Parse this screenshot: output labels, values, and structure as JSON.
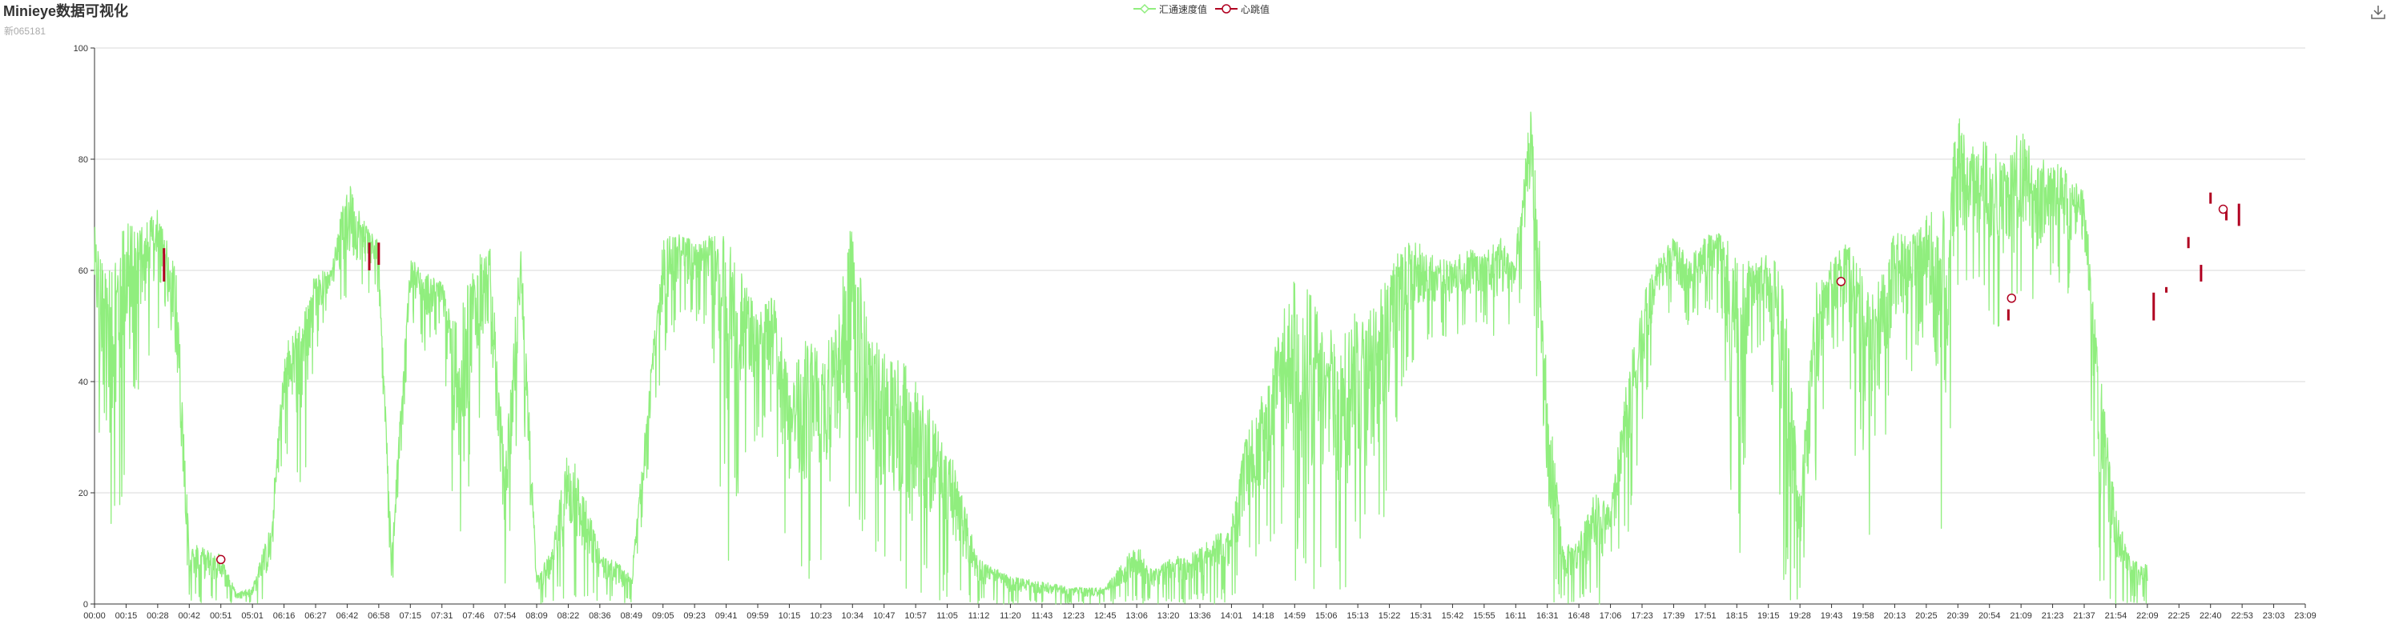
{
  "header": {
    "title": "Minieye数据可视化",
    "subtitle": "新065181"
  },
  "toolbox": {
    "save_icon": "download-icon"
  },
  "chart_data": {
    "type": "line",
    "title": "Minieye数据可视化",
    "subtitle": "新065181",
    "legend": {
      "placement": "top-center",
      "items": [
        {
          "name": "汇通速度值",
          "color": "#90ee7e",
          "marker": "line-diamond"
        },
        {
          "name": "心跳值",
          "color": "#b00020",
          "marker": "line-circle"
        }
      ]
    },
    "xlabel": "",
    "ylabel": "",
    "ylim": [
      0,
      100
    ],
    "y_ticks": [
      0,
      20,
      40,
      60,
      80,
      100
    ],
    "grid": true,
    "x_ticks": [
      "00:00",
      "00:15",
      "00:28",
      "00:42",
      "00:51",
      "05:01",
      "06:16",
      "06:27",
      "06:42",
      "06:58",
      "07:15",
      "07:31",
      "07:46",
      "07:54",
      "08:09",
      "08:22",
      "08:36",
      "08:49",
      "09:05",
      "09:23",
      "09:41",
      "09:59",
      "10:15",
      "10:23",
      "10:34",
      "10:47",
      "10:57",
      "11:05",
      "11:12",
      "11:20",
      "11:43",
      "12:23",
      "12:45",
      "13:06",
      "13:20",
      "13:36",
      "14:01",
      "14:18",
      "14:59",
      "15:06",
      "15:13",
      "15:22",
      "15:31",
      "15:42",
      "15:55",
      "16:11",
      "16:31",
      "16:48",
      "17:06",
      "17:23",
      "17:39",
      "17:51",
      "18:15",
      "19:15",
      "19:28",
      "19:43",
      "19:58",
      "20:13",
      "20:25",
      "20:39",
      "20:54",
      "21:09",
      "21:23",
      "21:37",
      "21:54",
      "22:09",
      "22:25",
      "22:40",
      "22:53",
      "23:03",
      "23:09"
    ],
    "series": [
      {
        "name": "汇通速度值",
        "color": "#90ee7e",
        "style": "high-frequency noisy line; segment envelope [category index, low, high]",
        "segments": [
          [
            0,
            45,
            68
          ],
          [
            0.4,
            0,
            62
          ],
          [
            1,
            25,
            70
          ],
          [
            1.5,
            40,
            68
          ],
          [
            2,
            50,
            71
          ],
          [
            2.6,
            27,
            60
          ],
          [
            3,
            0,
            11
          ],
          [
            3.5,
            0,
            10
          ],
          [
            4,
            0,
            9
          ],
          [
            4.5,
            0,
            2
          ],
          [
            5,
            0,
            3
          ],
          [
            5.6,
            0,
            15
          ],
          [
            6,
            28,
            46
          ],
          [
            6.6,
            15,
            52
          ],
          [
            7,
            45,
            60
          ],
          [
            7.5,
            55,
            60
          ],
          [
            8,
            50,
            77
          ],
          [
            8.5,
            55,
            70
          ],
          [
            9,
            56,
            65
          ],
          [
            9.4,
            0,
            10
          ],
          [
            10,
            52,
            62
          ],
          [
            10.5,
            45,
            60
          ],
          [
            11,
            50,
            58
          ],
          [
            11.5,
            0,
            50
          ],
          [
            12,
            30,
            62
          ],
          [
            12.5,
            38,
            66
          ],
          [
            13,
            0,
            25
          ],
          [
            13.5,
            40,
            67
          ],
          [
            14,
            0,
            5
          ],
          [
            14.5,
            0,
            10
          ],
          [
            15,
            0,
            30
          ],
          [
            15.5,
            0,
            20
          ],
          [
            16,
            0,
            10
          ],
          [
            16.5,
            0,
            8
          ],
          [
            17,
            0,
            5
          ],
          [
            18,
            44,
            66
          ],
          [
            18.5,
            50,
            67
          ],
          [
            19,
            50,
            65
          ],
          [
            19.5,
            50,
            67
          ],
          [
            20,
            0,
            66
          ],
          [
            20.5,
            25,
            60
          ],
          [
            21,
            30,
            52
          ],
          [
            21.5,
            30,
            56
          ],
          [
            22,
            0,
            40
          ],
          [
            22.5,
            0,
            48
          ],
          [
            23,
            5,
            47
          ],
          [
            23.5,
            10,
            52
          ],
          [
            24,
            10,
            70
          ],
          [
            24.5,
            15,
            50
          ],
          [
            25,
            0,
            45
          ],
          [
            25.5,
            0,
            45
          ],
          [
            26,
            0,
            40
          ],
          [
            27,
            0,
            30
          ],
          [
            28,
            0,
            8
          ],
          [
            29,
            0,
            5
          ],
          [
            30,
            0,
            4
          ],
          [
            31,
            0,
            3
          ],
          [
            32,
            0,
            3
          ],
          [
            33,
            0,
            11
          ],
          [
            33.5,
            0,
            6
          ],
          [
            34,
            0,
            8
          ],
          [
            35,
            0,
            10
          ],
          [
            36,
            0,
            15
          ],
          [
            36.5,
            5,
            32
          ],
          [
            37,
            8,
            38
          ],
          [
            37.5,
            10,
            50
          ],
          [
            38,
            0,
            60
          ],
          [
            38.5,
            0,
            56
          ],
          [
            39,
            0,
            50
          ],
          [
            39.5,
            0,
            52
          ],
          [
            40,
            0,
            56
          ],
          [
            40.5,
            0,
            54
          ],
          [
            41,
            20,
            60
          ],
          [
            41.5,
            40,
            66
          ],
          [
            42,
            45,
            65
          ],
          [
            42.5,
            48,
            62
          ],
          [
            43,
            48,
            62
          ],
          [
            43.5,
            48,
            64
          ],
          [
            44,
            50,
            64
          ],
          [
            44.5,
            45,
            66
          ],
          [
            45,
            50,
            64
          ],
          [
            45.5,
            58,
            91
          ],
          [
            46,
            0,
            40
          ],
          [
            46.5,
            0,
            10
          ],
          [
            47,
            0,
            12
          ],
          [
            47.5,
            0,
            20
          ],
          [
            48,
            0,
            18
          ],
          [
            48.5,
            10,
            40
          ],
          [
            49,
            30,
            55
          ],
          [
            49.5,
            50,
            62
          ],
          [
            50,
            52,
            66
          ],
          [
            50.5,
            50,
            62
          ],
          [
            51,
            52,
            66
          ],
          [
            51.5,
            52,
            68
          ],
          [
            52,
            0,
            62
          ],
          [
            52.5,
            45,
            62
          ],
          [
            53,
            45,
            63
          ],
          [
            53.5,
            0,
            60
          ],
          [
            54,
            0,
            20
          ],
          [
            54.5,
            20,
            58
          ],
          [
            55,
            45,
            62
          ],
          [
            55.5,
            45,
            65
          ],
          [
            56,
            0,
            60
          ],
          [
            56.5,
            20,
            58
          ],
          [
            57,
            40,
            67
          ],
          [
            57.5,
            40,
            66
          ],
          [
            58,
            50,
            70
          ],
          [
            58.5,
            0,
            72
          ],
          [
            59,
            50,
            88
          ],
          [
            59.5,
            55,
            82
          ],
          [
            60,
            50,
            84
          ],
          [
            60.5,
            48,
            80
          ],
          [
            61,
            55,
            86
          ],
          [
            61.5,
            50,
            80
          ],
          [
            62,
            60,
            80
          ],
          [
            62.5,
            55,
            78
          ],
          [
            63,
            58,
            74
          ],
          [
            63.5,
            0,
            44
          ],
          [
            64,
            0,
            18
          ],
          [
            64.5,
            0,
            8
          ],
          [
            65,
            0,
            7
          ]
        ]
      },
      {
        "name": "心跳值",
        "color": "#b00020",
        "points": [
          [
            4.0,
            8
          ],
          [
            55.3,
            58
          ],
          [
            60.7,
            55
          ],
          [
            67.4,
            71
          ]
        ],
        "bars": [
          [
            2.2,
            58,
            64
          ],
          [
            8.7,
            60,
            65
          ],
          [
            9.0,
            61,
            65
          ],
          [
            60.6,
            51,
            53
          ],
          [
            65.2,
            51,
            56
          ],
          [
            65.6,
            56,
            57
          ],
          [
            66.3,
            64,
            66
          ],
          [
            66.7,
            58,
            61
          ],
          [
            67.0,
            72,
            74
          ],
          [
            67.5,
            69,
            71
          ],
          [
            67.9,
            68,
            72
          ]
        ]
      }
    ]
  }
}
